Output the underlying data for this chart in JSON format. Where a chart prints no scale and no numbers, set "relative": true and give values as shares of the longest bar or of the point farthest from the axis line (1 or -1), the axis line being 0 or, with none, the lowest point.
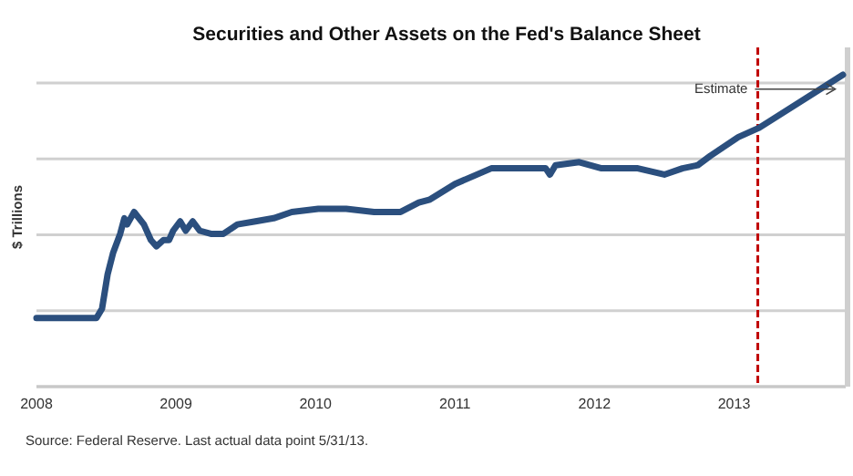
{
  "chart_data": {
    "type": "line",
    "title": "Securities and Other Assets on the Fed's Balance Sheet",
    "ylabel": "$ Trillions",
    "relative": true,
    "grid": "y",
    "xlim": [
      2008,
      2013.8
    ],
    "xticks": [
      2008,
      2009,
      2010,
      2011,
      2012,
      2013
    ],
    "x": [
      2008,
      2008.43,
      2008.47,
      2008.51,
      2008.55,
      2008.6,
      2008.63,
      2008.65,
      2008.7,
      2008.77,
      2008.82,
      2008.86,
      2008.91,
      2008.95,
      2008.98,
      2009.03,
      2009.07,
      2009.12,
      2009.17,
      2009.25,
      2009.34,
      2009.44,
      2009.57,
      2009.7,
      2009.83,
      2010.02,
      2010.22,
      2010.42,
      2010.61,
      2010.74,
      2010.82,
      2011,
      2011.26,
      2011.65,
      2011.68,
      2011.72,
      2011.89,
      2012.05,
      2012.31,
      2012.5,
      2012.63,
      2012.74,
      2012.83,
      2012.93,
      2013.03,
      2013.18,
      2013.78
    ],
    "series": [
      {
        "color": "#2b4f7e",
        "values": [
          0.22,
          0.22,
          0.25,
          0.36,
          0.43,
          0.49,
          0.54,
          0.52,
          0.56,
          0.52,
          0.47,
          0.45,
          0.47,
          0.47,
          0.5,
          0.53,
          0.5,
          0.53,
          0.5,
          0.49,
          0.49,
          0.52,
          0.53,
          0.54,
          0.56,
          0.57,
          0.57,
          0.56,
          0.56,
          0.59,
          0.6,
          0.65,
          0.7,
          0.7,
          0.68,
          0.71,
          0.72,
          0.7,
          0.7,
          0.68,
          0.7,
          0.71,
          0.74,
          0.77,
          0.8,
          0.83,
          1
        ]
      }
    ],
    "ref_lines": [
      {
        "axis": "x",
        "value": 2013.17,
        "color": "#c00000",
        "line_style": "dashed"
      }
    ],
    "annotations": [
      {
        "text": "Estimate",
        "x": 2013.15,
        "y": 0.96
      },
      "Source: Federal Reserve. Last actual data point 5/31/13."
    ]
  }
}
